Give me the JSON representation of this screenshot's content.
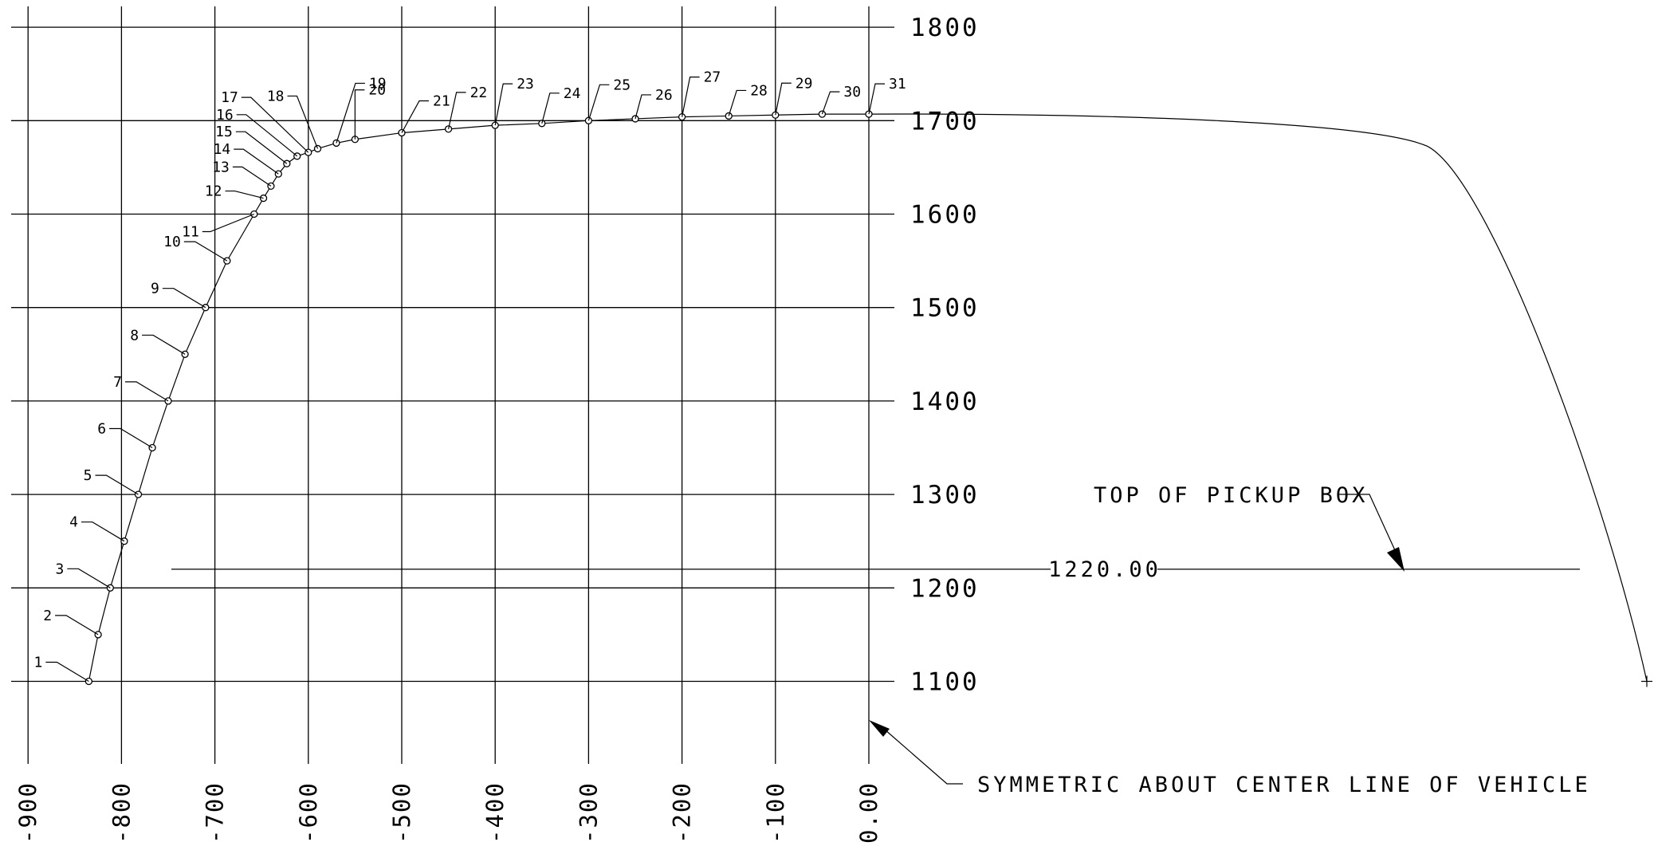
{
  "diagram": {
    "x_axis_labels": [
      "-900",
      "-800",
      "-700",
      "-600",
      "-500",
      "-400",
      "-300",
      "-200",
      "-100",
      "0.00"
    ],
    "y_axis_labels": [
      "1800",
      "1700",
      "1600",
      "1500",
      "1400",
      "1300",
      "1200",
      "1100"
    ],
    "x_range": [
      -900,
      0
    ],
    "y_range": [
      1100,
      1800
    ],
    "points": [
      {
        "label": "1",
        "x": -835,
        "y": 1100
      },
      {
        "label": "2",
        "x": -825,
        "y": 1150
      },
      {
        "label": "3",
        "x": -812,
        "y": 1200
      },
      {
        "label": "4",
        "x": -797,
        "y": 1250
      },
      {
        "label": "5",
        "x": -782,
        "y": 1300
      },
      {
        "label": "6",
        "x": -767,
        "y": 1350
      },
      {
        "label": "7",
        "x": -750,
        "y": 1400
      },
      {
        "label": "8",
        "x": -732,
        "y": 1450
      },
      {
        "label": "9",
        "x": -710,
        "y": 1500
      },
      {
        "label": "10",
        "x": -687,
        "y": 1550
      },
      {
        "label": "11",
        "x": -658,
        "y": 1600
      },
      {
        "label": "12",
        "x": -648,
        "y": 1617
      },
      {
        "label": "13",
        "x": -640,
        "y": 1630
      },
      {
        "label": "14",
        "x": -632,
        "y": 1643
      },
      {
        "label": "15",
        "x": -623,
        "y": 1654
      },
      {
        "label": "16",
        "x": -612,
        "y": 1662
      },
      {
        "label": "17",
        "x": -600,
        "y": 1666
      },
      {
        "label": "18",
        "x": -590,
        "y": 1670
      },
      {
        "label": "19",
        "x": -570,
        "y": 1676
      },
      {
        "label": "20",
        "x": -550,
        "y": 1680
      },
      {
        "label": "21",
        "x": -500,
        "y": 1687
      },
      {
        "label": "22",
        "x": -450,
        "y": 1691
      },
      {
        "label": "23",
        "x": -400,
        "y": 1695
      },
      {
        "label": "24",
        "x": -350,
        "y": 1697
      },
      {
        "label": "25",
        "x": -300,
        "y": 1700
      },
      {
        "label": "26",
        "x": -250,
        "y": 1702
      },
      {
        "label": "27",
        "x": -200,
        "y": 1704
      },
      {
        "label": "28",
        "x": -150,
        "y": 1705
      },
      {
        "label": "29",
        "x": -100,
        "y": 1706
      },
      {
        "label": "30",
        "x": -50,
        "y": 1707
      },
      {
        "label": "31",
        "x": 0,
        "y": 1707
      }
    ],
    "dimension_value": "1220.00",
    "dimension_y": 1220,
    "annotations": {
      "top_of_box": "TOP OF PICKUP BOX",
      "symmetric_note": "SYMMETRIC ABOUT CENTER LINE OF VEHICLE"
    }
  }
}
